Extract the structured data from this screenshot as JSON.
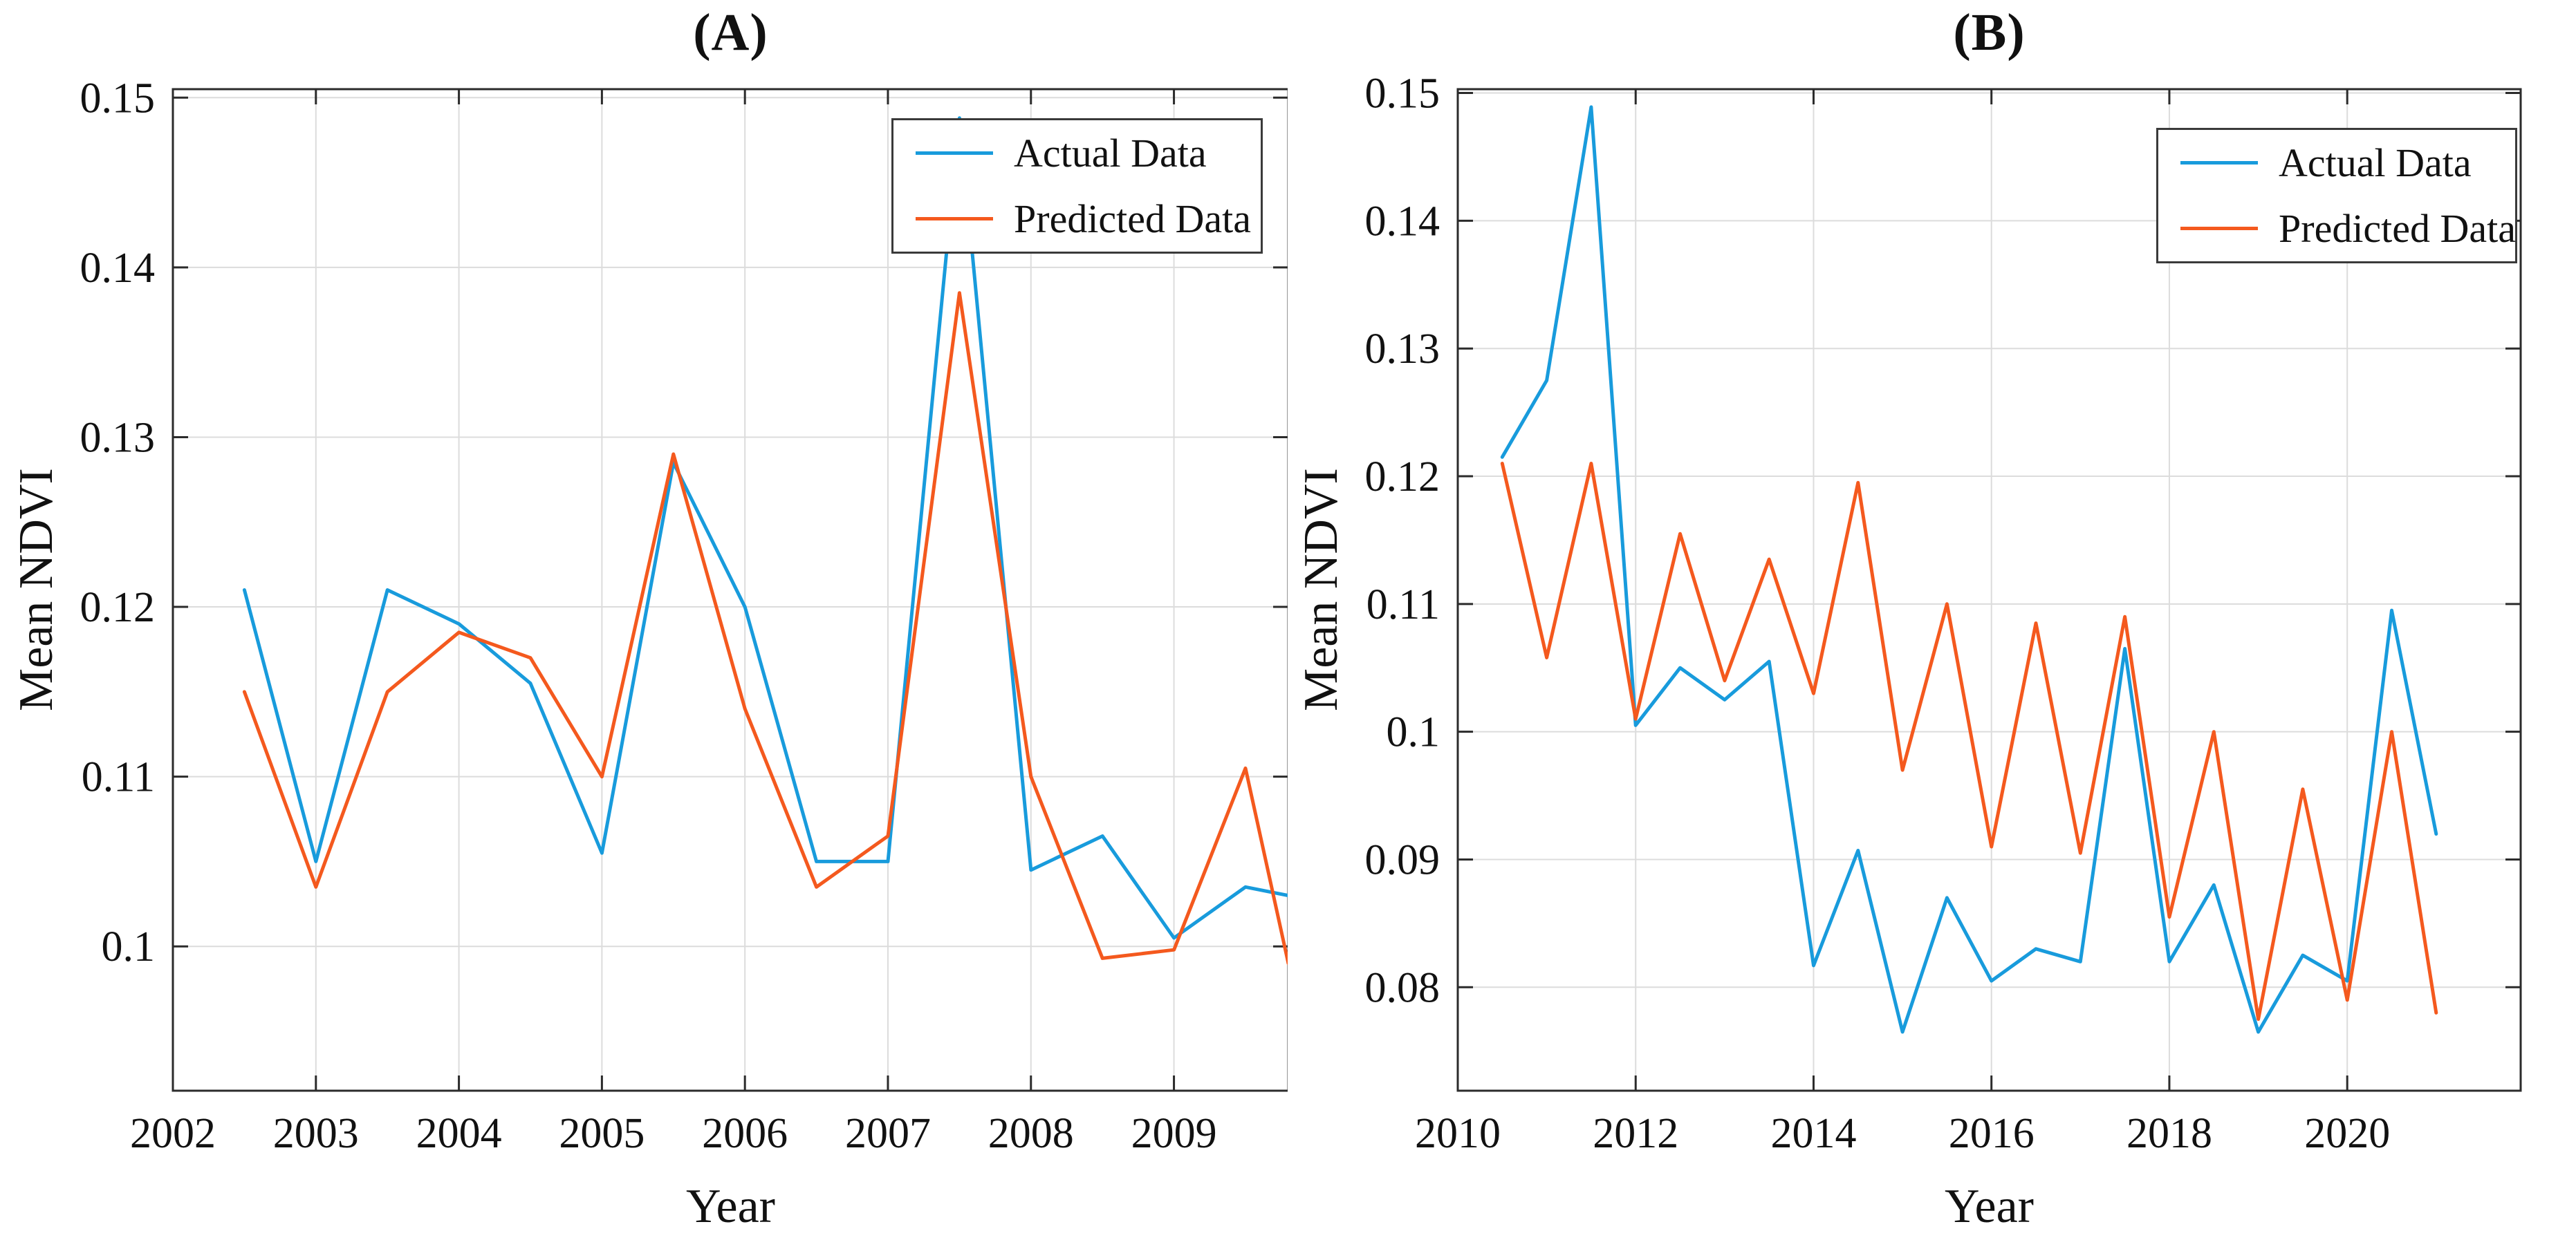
{
  "colors": {
    "actual": "#189bdc",
    "predicted": "#f4591e",
    "grid": "#dcdcdc",
    "axis": "#2b2b2b",
    "text": "#111111"
  },
  "legend": {
    "actual_label": "Actual Data",
    "predicted_label": "Predicted Data"
  },
  "chart_data": [
    {
      "type": "line",
      "title": "(A)",
      "xlabel": "Year",
      "ylabel": "Mean NDVI",
      "xlim": [
        2002,
        2009.8
      ],
      "ylim": [
        0.0915,
        0.1505
      ],
      "xticks": [
        2002,
        2003,
        2004,
        2005,
        2006,
        2007,
        2008,
        2009
      ],
      "xtick_labels": [
        "2002",
        "2003",
        "2004",
        "2005",
        "2006",
        "2007",
        "2008",
        "2009"
      ],
      "yticks": [
        0.1,
        0.11,
        0.12,
        0.13,
        0.14,
        0.15
      ],
      "ytick_labels": [
        "0.1",
        "0.11",
        "0.12",
        "0.13",
        "0.14",
        "0.15"
      ],
      "grid": true,
      "legend_position": "top-right-inside",
      "x": [
        2002.5,
        2003,
        2003.5,
        2004,
        2004.5,
        2005,
        2005.5,
        2006,
        2006.5,
        2007,
        2007.5,
        2008,
        2008.5,
        2009,
        2009.5,
        2009.8
      ],
      "series": [
        {
          "name": "Actual Data",
          "color_key": "actual",
          "values": [
            0.121,
            0.105,
            0.121,
            0.119,
            0.1155,
            0.1055,
            0.1285,
            0.12,
            0.105,
            0.105,
            0.1488,
            0.1045,
            0.1065,
            0.1005,
            0.1035,
            0.103
          ]
        },
        {
          "name": "Predicted Data",
          "color_key": "predicted",
          "values": [
            0.115,
            0.1035,
            0.115,
            0.1185,
            0.117,
            0.11,
            0.129,
            0.114,
            0.1035,
            0.1065,
            0.1385,
            0.11,
            0.0993,
            0.0998,
            0.1105,
            0.099
          ]
        }
      ]
    },
    {
      "type": "line",
      "title": "(B)",
      "xlabel": "Year",
      "ylabel": "Mean NDVI",
      "xlim": [
        2010,
        2021.95
      ],
      "ylim": [
        0.0719,
        0.1503
      ],
      "xticks": [
        2010,
        2012,
        2014,
        2016,
        2018,
        2020
      ],
      "xtick_labels": [
        "2010",
        "2012",
        "2014",
        "2016",
        "2018",
        "2020"
      ],
      "yticks": [
        0.08,
        0.09,
        0.1,
        0.11,
        0.12,
        0.13,
        0.14,
        0.15
      ],
      "ytick_labels": [
        "0.08",
        "0.09",
        "0.1",
        "0.11",
        "0.12",
        "0.13",
        "0.14",
        "0.15"
      ],
      "grid": true,
      "legend_position": "top-right-inside",
      "x": [
        2010.5,
        2011,
        2011.5,
        2012,
        2012.5,
        2013,
        2013.5,
        2014,
        2014.5,
        2015,
        2015.5,
        2016,
        2016.5,
        2017,
        2017.5,
        2018,
        2018.5,
        2019,
        2019.5,
        2020,
        2020.5,
        2021
      ],
      "series": [
        {
          "name": "Actual Data",
          "color_key": "actual",
          "values": [
            0.1215,
            0.1275,
            0.1489,
            0.1005,
            0.105,
            0.1025,
            0.1055,
            0.0817,
            0.0907,
            0.0765,
            0.087,
            0.0805,
            0.083,
            0.082,
            0.1065,
            0.082,
            0.088,
            0.0765,
            0.0825,
            0.0805,
            0.1095,
            0.092
          ]
        },
        {
          "name": "Predicted Data",
          "color_key": "predicted",
          "values": [
            0.121,
            0.1058,
            0.121,
            0.101,
            0.1155,
            0.104,
            0.1135,
            0.103,
            0.1195,
            0.097,
            0.11,
            0.091,
            0.1085,
            0.0905,
            0.109,
            0.0855,
            0.1,
            0.0775,
            0.0955,
            0.079,
            0.1,
            0.078
          ]
        }
      ]
    }
  ]
}
